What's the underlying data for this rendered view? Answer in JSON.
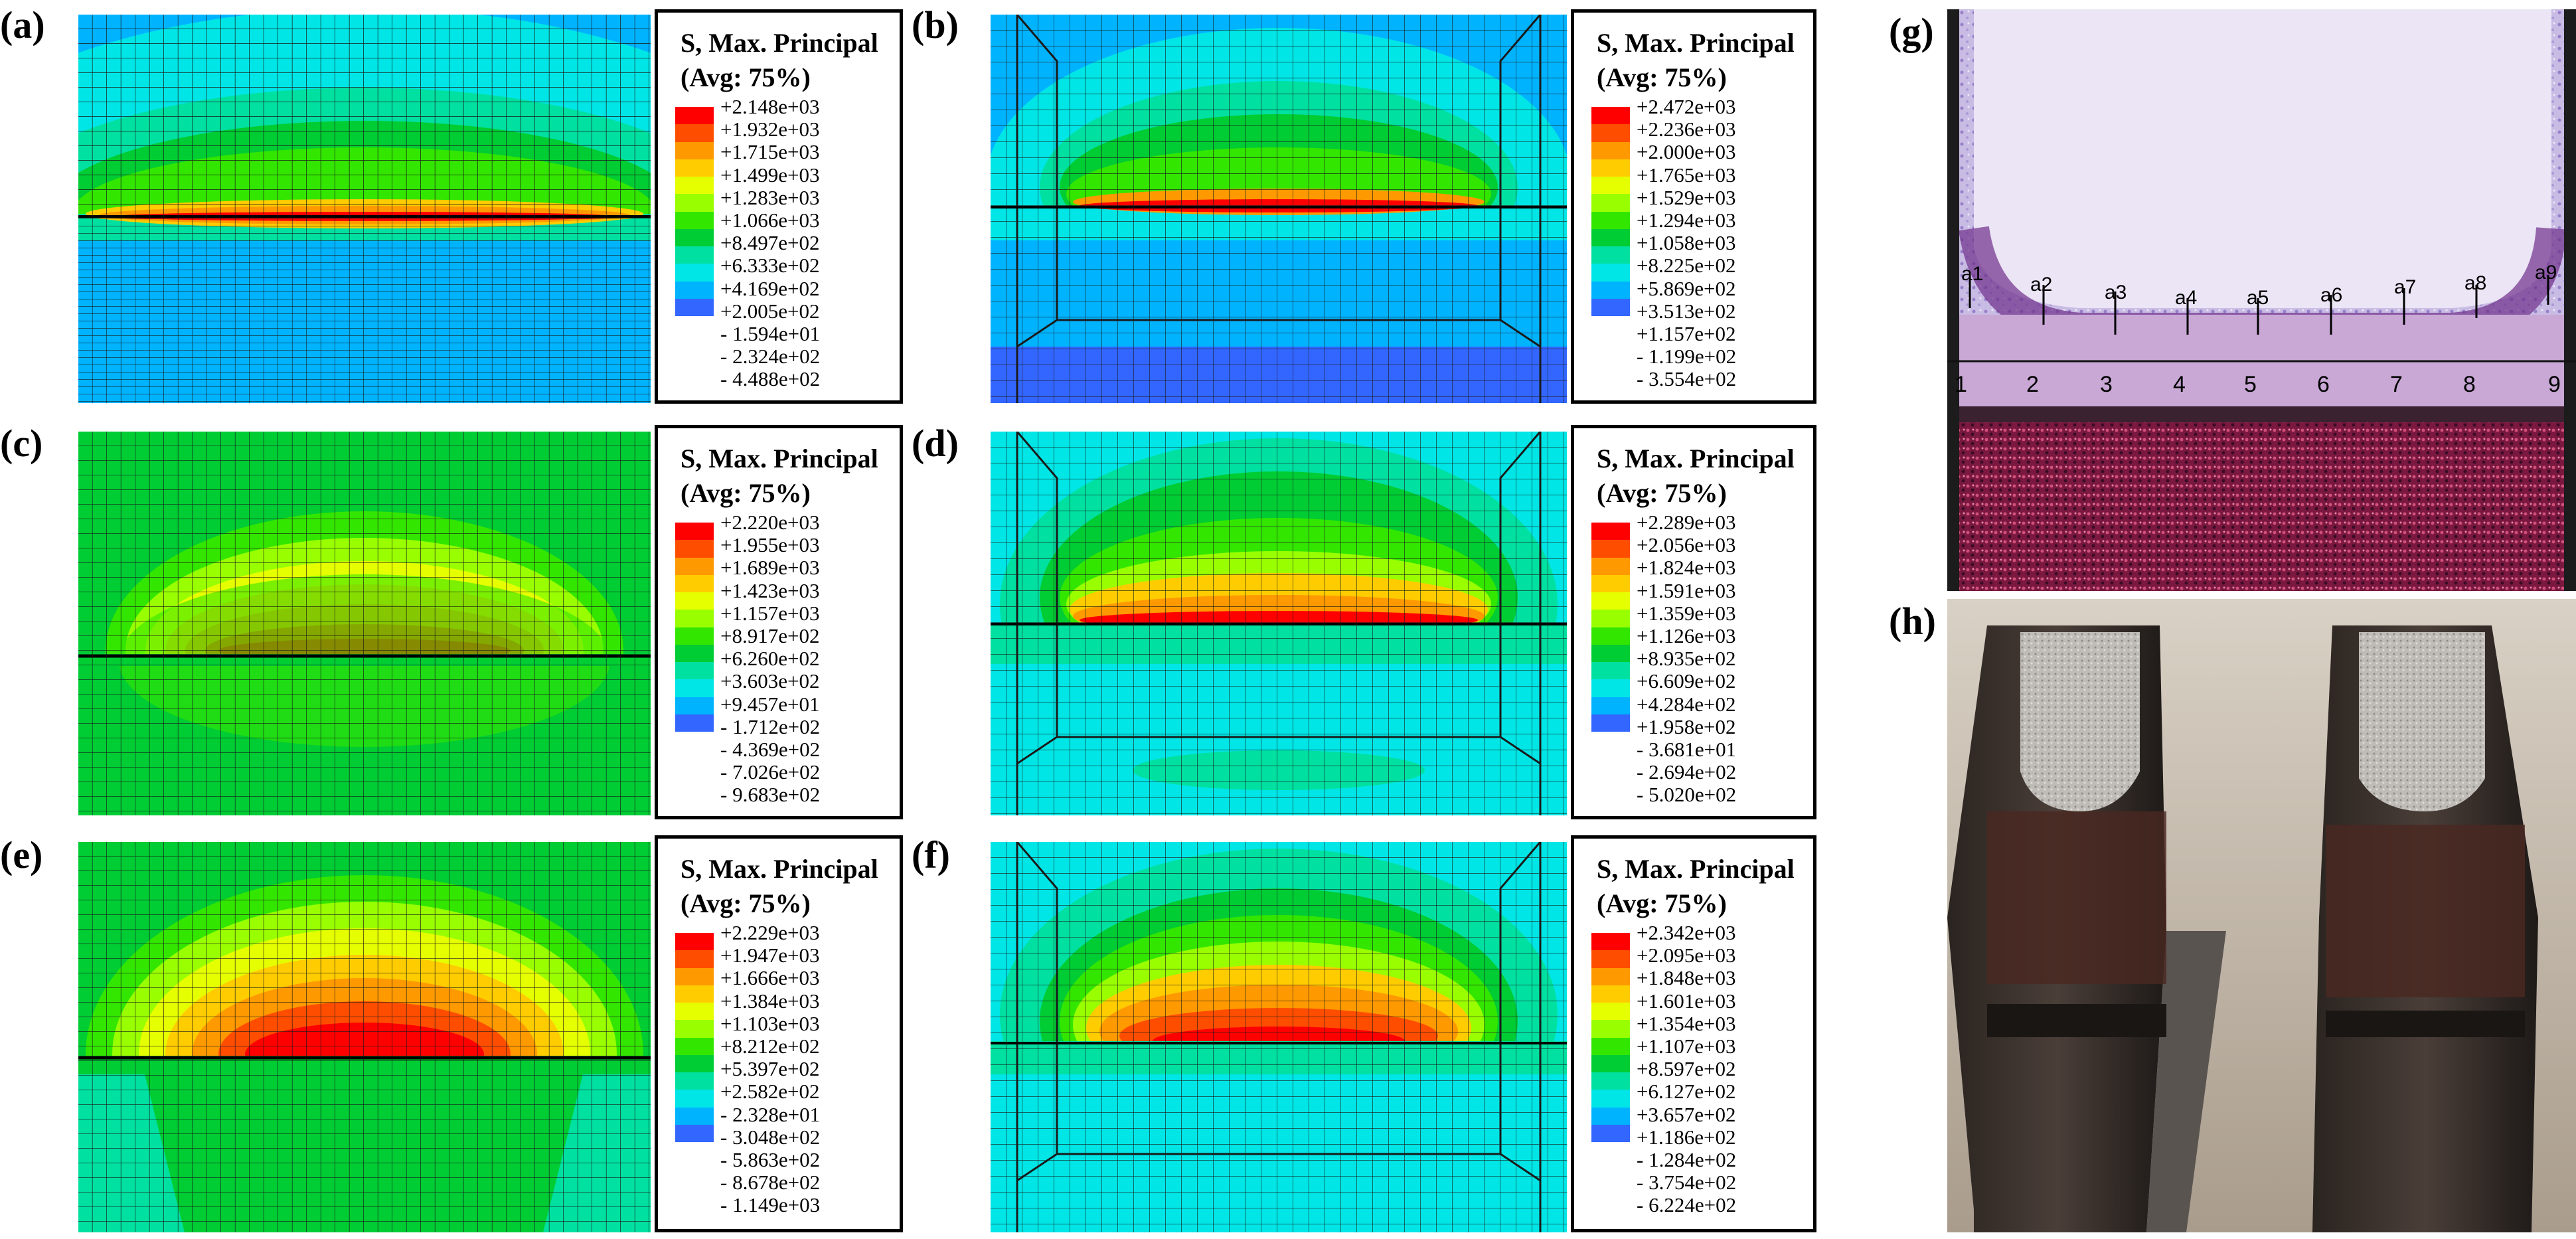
{
  "legend_title_line1": "S, Max. Principal",
  "legend_title_line2": "(Avg: 75%)",
  "legend_colors": [
    "#ff0000",
    "#ff4d00",
    "#ff9900",
    "#ffcc00",
    "#e6ff00",
    "#99ff00",
    "#33e600",
    "#00cc33",
    "#00e0a0",
    "#00e6e6",
    "#00b3ff",
    "#3366ff",
    "#0000ff"
  ],
  "panels": [
    {
      "label": "(a)",
      "ticks": [
        "+2.148e+03",
        "+1.932e+03",
        "+1.715e+03",
        "+1.499e+03",
        "+1.283e+03",
        "+1.066e+03",
        "+8.497e+02",
        "+6.333e+02",
        "+4.169e+02",
        "+2.005e+02",
        "- 1.594e+01",
        "- 2.324e+02",
        "- 4.488e+02"
      ]
    },
    {
      "label": "(b)",
      "ticks": [
        "+2.472e+03",
        "+2.236e+03",
        "+2.000e+03",
        "+1.765e+03",
        "+1.529e+03",
        "+1.294e+03",
        "+1.058e+03",
        "+8.225e+02",
        "+5.869e+02",
        "+3.513e+02",
        "+1.157e+02",
        "- 1.199e+02",
        "- 3.554e+02"
      ]
    },
    {
      "label": "(c)",
      "ticks": [
        "+2.220e+03",
        "+1.955e+03",
        "+1.689e+03",
        "+1.423e+03",
        "+1.157e+03",
        "+8.917e+02",
        "+6.260e+02",
        "+3.603e+02",
        "+9.457e+01",
        "- 1.712e+02",
        "- 4.369e+02",
        "- 7.026e+02",
        "- 9.683e+02"
      ]
    },
    {
      "label": "(d)",
      "ticks": [
        "+2.289e+03",
        "+2.056e+03",
        "+1.824e+03",
        "+1.591e+03",
        "+1.359e+03",
        "+1.126e+03",
        "+8.935e+02",
        "+6.609e+02",
        "+4.284e+02",
        "+1.958e+02",
        "- 3.681e+01",
        "- 2.694e+02",
        "- 5.020e+02"
      ]
    },
    {
      "label": "(e)",
      "ticks": [
        "+2.229e+03",
        "+1.947e+03",
        "+1.666e+03",
        "+1.384e+03",
        "+1.103e+03",
        "+8.212e+02",
        "+5.397e+02",
        "+2.582e+02",
        "- 2.328e+01",
        "- 3.048e+02",
        "- 5.863e+02",
        "- 8.678e+02",
        "- 1.149e+03"
      ]
    },
    {
      "label": "(f)",
      "ticks": [
        "+2.342e+03",
        "+2.095e+03",
        "+1.848e+03",
        "+1.601e+03",
        "+1.354e+03",
        "+1.107e+03",
        "+8.597e+02",
        "+6.127e+02",
        "+3.657e+02",
        "+1.186e+02",
        "- 1.284e+02",
        "- 3.754e+02",
        "- 6.224e+02"
      ]
    }
  ],
  "panel_g": {
    "label": "(g)",
    "measure_labels": [
      "a1",
      "a2",
      "a3",
      "a4",
      "a5",
      "a6",
      "a7",
      "a8",
      "a9"
    ],
    "position_labels": [
      "1",
      "2",
      "3",
      "4",
      "5",
      "6",
      "7",
      "8",
      "9"
    ]
  },
  "panel_h": {
    "label": "(h)"
  }
}
